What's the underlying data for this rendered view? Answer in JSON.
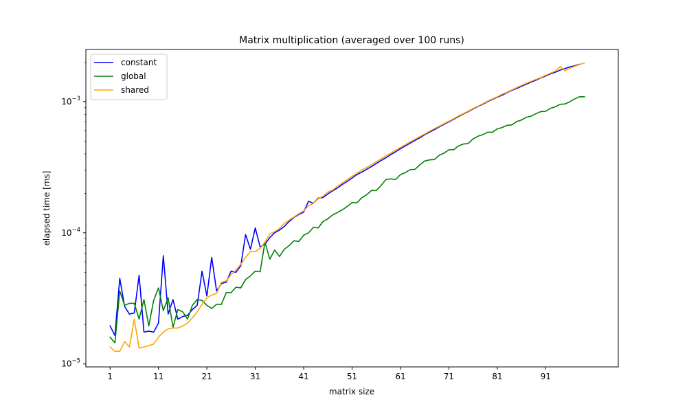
{
  "chart_data": {
    "type": "line",
    "title": "Matrix multiplication (averaged over 100 runs)",
    "xlabel": "matrix size",
    "ylabel": "elapsed time [ms]",
    "yscale": "log",
    "xlim": [
      -4,
      106
    ],
    "ylim": [
      9.5e-06,
      0.0025
    ],
    "grid": false,
    "legend_placement": "top-left",
    "x_ticks": [
      1,
      11,
      21,
      31,
      41,
      51,
      61,
      71,
      81,
      91
    ],
    "x_tick_labels": [
      "1",
      "11",
      "21",
      "31",
      "41",
      "51",
      "61",
      "71",
      "81",
      "91"
    ],
    "y_ticks": [
      {
        "value": 1e-05,
        "base": "10",
        "exp": "−5"
      },
      {
        "value": 0.0001,
        "base": "10",
        "exp": "−4"
      },
      {
        "value": 0.001,
        "base": "10",
        "exp": "−3"
      }
    ],
    "x_start": 1,
    "x_step": 1,
    "series": [
      {
        "name": "constant",
        "color": "#0000ff",
        "values": [
          1.95e-05,
          1.65e-05,
          4.5e-05,
          2.75e-05,
          2.4e-05,
          2.45e-05,
          4.75e-05,
          1.75e-05,
          1.78e-05,
          1.75e-05,
          2.05e-05,
          6.7e-05,
          2.4e-05,
          3.1e-05,
          2.2e-05,
          2.3e-05,
          2.35e-05,
          2.6e-05,
          2.8e-05,
          5.1e-05,
          3.3e-05,
          6.5e-05,
          3.6e-05,
          4.1e-05,
          4.2e-05,
          5.1e-05,
          5e-05,
          5.6e-05,
          9.7e-05,
          7.5e-05,
          0.000109,
          7.8e-05,
          8.2e-05,
          9.2e-05,
          0.0001,
          0.000105,
          0.000112,
          0.000122,
          0.000131,
          0.000138,
          0.000144,
          0.000174,
          0.000168,
          0.000184,
          0.000186,
          0.000198,
          0.000209,
          0.00022,
          0.000234,
          0.000247,
          0.000262,
          0.000278,
          0.00029,
          0.000305,
          0.00032,
          0.000338,
          0.000356,
          0.000374,
          0.000395,
          0.000415,
          0.000438,
          0.00046,
          0.000483,
          0.000507,
          0.00053,
          0.00056,
          0.000585,
          0.000612,
          0.000642,
          0.000672,
          0.000702,
          0.000735,
          0.00077,
          0.000805,
          0.00084,
          0.00088,
          0.00092,
          0.000955,
          0.001,
          0.00104,
          0.00108,
          0.00112,
          0.00117,
          0.00122,
          0.00126,
          0.00131,
          0.00136,
          0.00141,
          0.00146,
          0.00152,
          0.00157,
          0.00163,
          0.00168,
          0.00174,
          0.00179,
          0.00184,
          0.00188,
          0.00193
        ]
      },
      {
        "name": "global",
        "color": "#008000",
        "values": [
          1.6e-05,
          1.45e-05,
          3.6e-05,
          2.8e-05,
          2.9e-05,
          2.9e-05,
          2.2e-05,
          3.1e-05,
          1.95e-05,
          3.05e-05,
          3.8e-05,
          2.55e-05,
          3.2e-05,
          1.9e-05,
          2.6e-05,
          2.5e-05,
          2.2e-05,
          2.8e-05,
          3.1e-05,
          3.05e-05,
          2.8e-05,
          2.65e-05,
          2.85e-05,
          2.85e-05,
          3.5e-05,
          3.5e-05,
          3.85e-05,
          3.8e-05,
          4.4e-05,
          4.7e-05,
          5.1e-05,
          5.05e-05,
          8.5e-05,
          6.3e-05,
          7.4e-05,
          6.6e-05,
          7.5e-05,
          8e-05,
          8.7e-05,
          8.6e-05,
          9.6e-05,
          0.0001,
          0.00011,
          0.000109,
          0.000122,
          0.000128,
          0.000137,
          0.000143,
          0.00015,
          0.000159,
          0.00017,
          0.000169,
          0.000185,
          0.000195,
          0.00021,
          0.00021,
          0.00023,
          0.000255,
          0.000258,
          0.000255,
          0.000278,
          0.000288,
          0.000303,
          0.000305,
          0.00033,
          0.000353,
          0.00036,
          0.000362,
          0.00039,
          0.000405,
          0.00043,
          0.00043,
          0.00046,
          0.000475,
          0.00048,
          0.00052,
          0.000545,
          0.00056,
          0.000585,
          0.000585,
          0.00062,
          0.000635,
          0.00066,
          0.000665,
          0.000705,
          0.000725,
          0.00076,
          0.000775,
          0.00081,
          0.00084,
          0.000845,
          0.00089,
          0.000915,
          0.000955,
          0.00096,
          0.001,
          0.00105,
          0.00109,
          0.00109
        ]
      },
      {
        "name": "shared",
        "color": "#ffa500",
        "values": [
          1.35e-05,
          1.25e-05,
          1.25e-05,
          1.48e-05,
          1.35e-05,
          2.2e-05,
          1.32e-05,
          1.35e-05,
          1.38e-05,
          1.42e-05,
          1.6e-05,
          1.75e-05,
          1.85e-05,
          1.88e-05,
          1.88e-05,
          1.95e-05,
          2.05e-05,
          2.25e-05,
          2.5e-05,
          2.85e-05,
          3.2e-05,
          3.35e-05,
          3.45e-05,
          4.2e-05,
          4.3e-05,
          4.8e-05,
          5.2e-05,
          5.75e-05,
          6.5e-05,
          7.2e-05,
          7.2e-05,
          7.6e-05,
          8.5e-05,
          9.8e-05,
          0.000102,
          0.000108,
          0.000118,
          0.000125,
          0.000132,
          0.00014,
          0.000147,
          0.000161,
          0.000168,
          0.000182,
          0.00019,
          0.000205,
          0.000212,
          0.000227,
          0.00024,
          0.000255,
          0.00027,
          0.000285,
          0.0003,
          0.000315,
          0.00033,
          0.000348,
          0.000367,
          0.000386,
          0.000405,
          0.000427,
          0.000448,
          0.00047,
          0.000493,
          0.000517,
          0.000542,
          0.000567,
          0.000595,
          0.000623,
          0.00065,
          0.00068,
          0.00071,
          0.000742,
          0.000778,
          0.000812,
          0.000848,
          0.000888,
          0.000925,
          0.000965,
          0.00101,
          0.00105,
          0.00109,
          0.00114,
          0.00118,
          0.00123,
          0.00128,
          0.00133,
          0.00138,
          0.00143,
          0.00148,
          0.00153,
          0.00159,
          0.00165,
          0.00171,
          0.00185,
          0.00172,
          0.0018,
          0.00186,
          0.00192,
          0.00197
        ]
      }
    ]
  }
}
